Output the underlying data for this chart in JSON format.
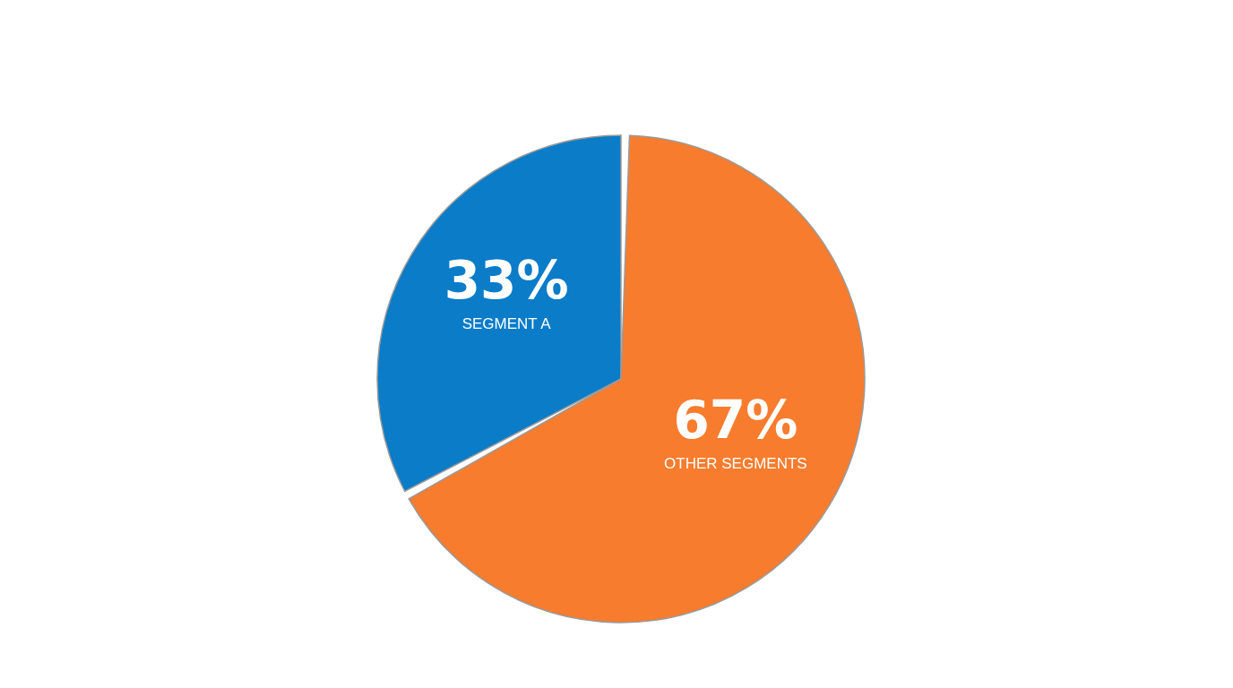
{
  "chart_data": {
    "type": "pie",
    "categories": [
      "SEGMENT A",
      "OTHER SEGMENTS"
    ],
    "values": [
      33,
      67
    ],
    "colors": [
      "#0a7cc8",
      "#f77c2e"
    ],
    "value_labels": [
      "33%",
      "67%"
    ]
  }
}
